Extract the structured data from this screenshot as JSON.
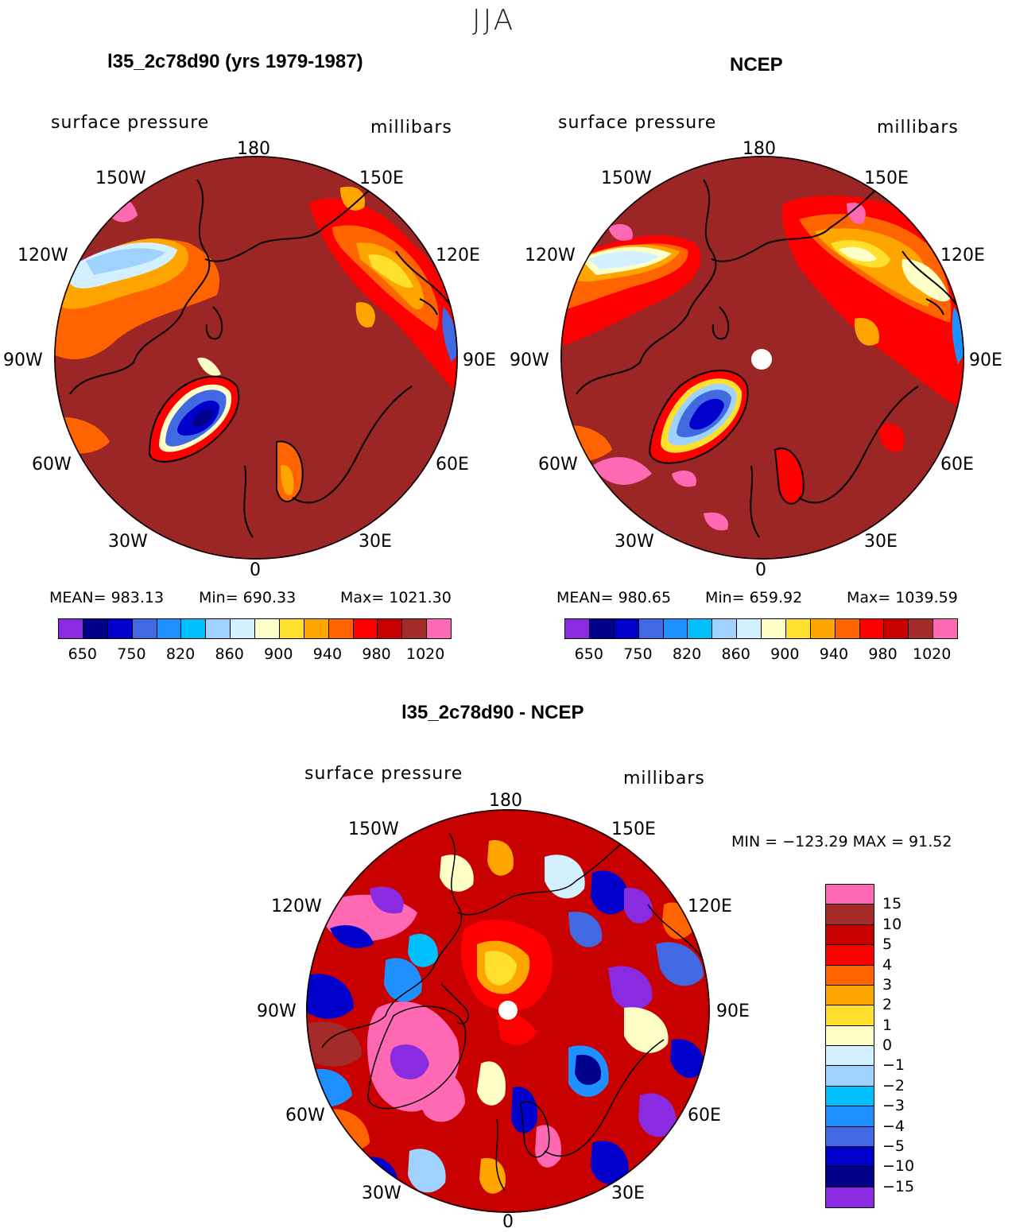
{
  "season": "JJA",
  "colors": {
    "abs_palette": [
      "#8a2be2",
      "#00008b",
      "#0000cd",
      "#4169e1",
      "#1e90ff",
      "#00bfff",
      "#a0d2ff",
      "#d2f0ff",
      "#ffffc8",
      "#ffe12d",
      "#ffa500",
      "#ff6400",
      "#ff0000",
      "#c80000",
      "#a52a2a",
      "#ff69b4"
    ],
    "diff_palette": [
      "#ff69b4",
      "#a52a2a",
      "#c80000",
      "#ff0000",
      "#ff6400",
      "#ffa500",
      "#ffe12d",
      "#ffffc8",
      "#d2f0ff",
      "#a0d2ff",
      "#00bfff",
      "#1e90ff",
      "#4169e1",
      "#0000cd",
      "#00008b",
      "#8a2be2"
    ],
    "background_fill": "#9c2626",
    "coast": "#000000"
  },
  "map_labels": {
    "lon": {
      "top": "180",
      "bottom": "0",
      "l150": "150W",
      "r150": "150E",
      "l120": "120W",
      "r120": "120E",
      "l90": "90W",
      "r90": "90E",
      "l60": "60W",
      "r60": "60E",
      "l30": "30W",
      "r30": "30E"
    }
  },
  "panel_model": {
    "title": "l35_2c78d90 (yrs 1979-1987)",
    "variable": "surface pressure",
    "units": "millibars",
    "mean": "MEAN= 983.13",
    "min": "Min= 690.33",
    "max": "Max= 1021.30",
    "ticks": [
      "650",
      "750",
      "820",
      "860",
      "900",
      "940",
      "980",
      "1020"
    ]
  },
  "panel_obs": {
    "title": "NCEP",
    "variable": "surface pressure",
    "units": "millibars",
    "mean": "MEAN= 980.65",
    "min": "Min= 659.92",
    "max": "Max= 1039.59",
    "ticks": [
      "650",
      "750",
      "820",
      "860",
      "900",
      "940",
      "980",
      "1020"
    ]
  },
  "panel_diff": {
    "title": "l35_2c78d90 - NCEP",
    "variable": "surface pressure",
    "units": "millibars",
    "minmax": "MIN = −123.29 MAX =  91.52",
    "ticks": [
      "15",
      "10",
      "5",
      "4",
      "3",
      "2",
      "1",
      "0",
      "−1",
      "−2",
      "−3",
      "−4",
      "−5",
      "−10",
      "−15"
    ]
  }
}
